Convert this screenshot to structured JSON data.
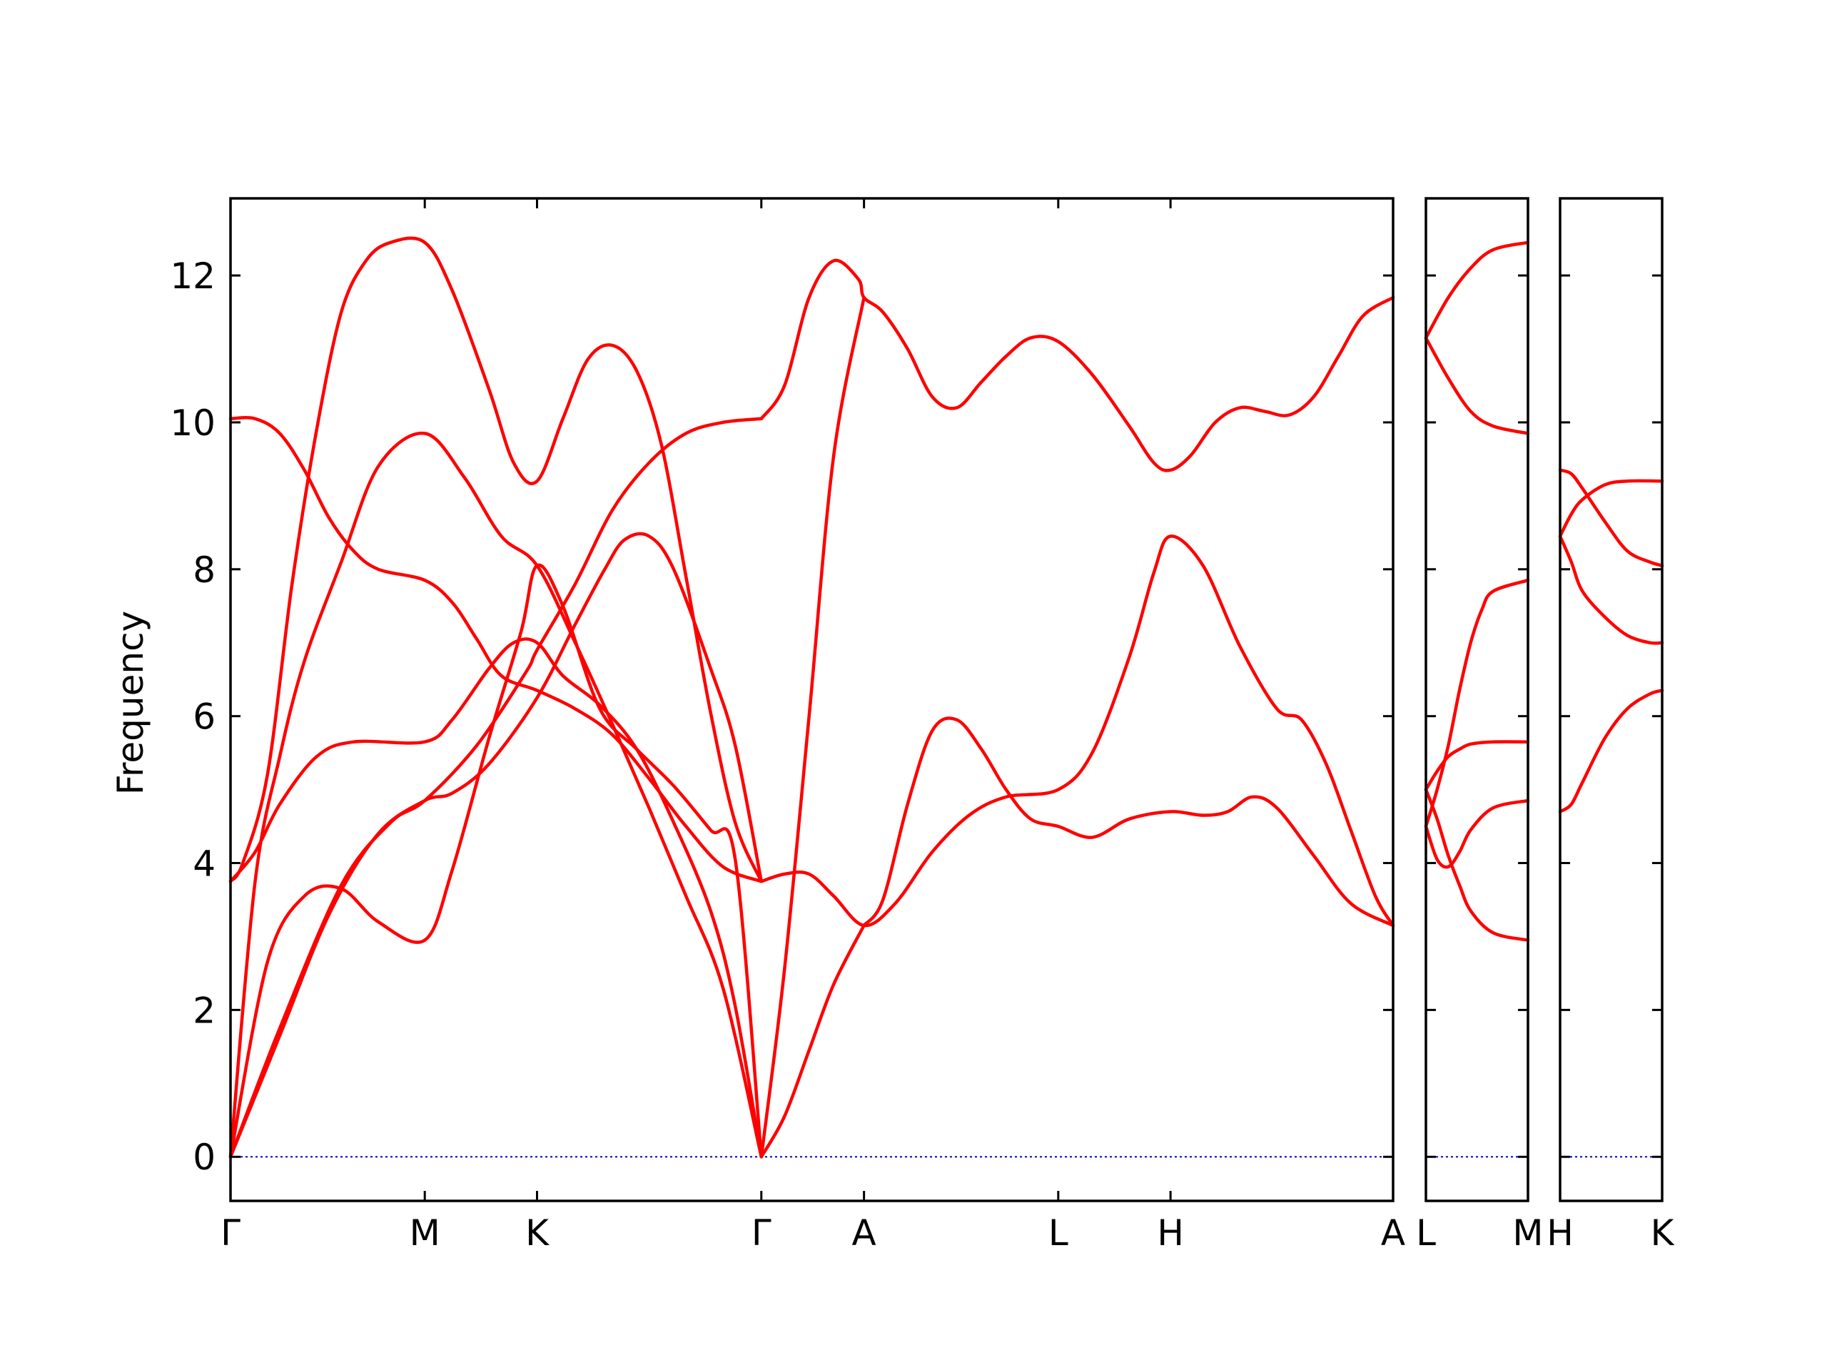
{
  "chart_data": {
    "type": "line",
    "title": "",
    "ylabel": "Frequency",
    "ylim": [
      -0.6,
      13.05
    ],
    "yticks": [
      0,
      2,
      4,
      6,
      8,
      10,
      12
    ],
    "zero_line_color": "#0000cc",
    "band_color": "#ff0000",
    "panels": [
      {
        "x_range": [
          0,
          4.722
        ],
        "ticks": [
          {
            "x": 0,
            "label": "Γ"
          },
          {
            "x": 0.789,
            "label": "M"
          },
          {
            "x": 1.245,
            "label": "K"
          },
          {
            "x": 2.156,
            "label": "Γ"
          },
          {
            "x": 2.573,
            "label": "A"
          },
          {
            "x": 3.362,
            "label": "L"
          },
          {
            "x": 3.818,
            "label": "H"
          },
          {
            "x": 4.722,
            "label": "A"
          }
        ],
        "bands": [
          [
            [
              0,
              0
            ],
            [
              0.2,
              1.75
            ],
            [
              0.45,
              3.7
            ],
            [
              0.65,
              4.55
            ],
            [
              0.789,
              4.85
            ],
            [
              1.0,
              5.6
            ],
            [
              1.2,
              6.6
            ],
            [
              1.245,
              6.9
            ],
            [
              1.4,
              7.8
            ],
            [
              1.55,
              8.8
            ],
            [
              1.7,
              9.45
            ],
            [
              1.85,
              9.85
            ],
            [
              2.0,
              10.0
            ],
            [
              2.156,
              10.05
            ]
          ],
          [
            [
              0,
              0
            ],
            [
              0.15,
              2.65
            ],
            [
              0.3,
              3.55
            ],
            [
              0.45,
              3.65
            ],
            [
              0.6,
              3.2
            ],
            [
              0.789,
              2.95
            ],
            [
              0.9,
              3.9
            ],
            [
              1.05,
              5.7
            ],
            [
              1.18,
              7.15
            ],
            [
              1.245,
              8.05
            ],
            [
              1.35,
              7.5
            ],
            [
              1.5,
              6.1
            ],
            [
              1.65,
              5.55
            ],
            [
              1.8,
              5.05
            ],
            [
              1.95,
              4.45
            ],
            [
              2.05,
              4.05
            ],
            [
              2.156,
              0
            ]
          ],
          [
            [
              0,
              0
            ],
            [
              0.2,
              1.65
            ],
            [
              0.4,
              3.3
            ],
            [
              0.6,
              4.4
            ],
            [
              0.789,
              4.85
            ],
            [
              0.9,
              4.95
            ],
            [
              1.05,
              5.35
            ],
            [
              1.245,
              6.25
            ],
            [
              1.4,
              7.25
            ],
            [
              1.52,
              8.0
            ],
            [
              1.6,
              8.4
            ],
            [
              1.7,
              8.45
            ],
            [
              1.8,
              8.0
            ],
            [
              1.95,
              6.65
            ],
            [
              2.05,
              5.6
            ],
            [
              2.156,
              3.75
            ]
          ],
          [
            [
              0,
              0
            ],
            [
              0.1,
              3.75
            ],
            [
              0.2,
              5.45
            ],
            [
              0.3,
              6.75
            ],
            [
              0.45,
              8.1
            ],
            [
              0.6,
              9.4
            ],
            [
              0.789,
              9.85
            ],
            [
              0.95,
              9.25
            ],
            [
              1.1,
              8.45
            ],
            [
              1.245,
              8.05
            ],
            [
              1.4,
              7.0
            ],
            [
              1.55,
              5.9
            ],
            [
              1.7,
              4.75
            ],
            [
              1.85,
              3.55
            ],
            [
              2.0,
              2.3
            ],
            [
              2.156,
              0
            ]
          ],
          [
            [
              0,
              3.75
            ],
            [
              0.1,
              4.15
            ],
            [
              0.2,
              4.8
            ],
            [
              0.35,
              5.45
            ],
            [
              0.5,
              5.65
            ],
            [
              0.789,
              5.65
            ],
            [
              0.9,
              5.95
            ],
            [
              1.05,
              6.65
            ],
            [
              1.15,
              7.0
            ],
            [
              1.245,
              7.0
            ],
            [
              1.35,
              6.55
            ],
            [
              1.5,
              6.15
            ],
            [
              1.65,
              5.55
            ],
            [
              1.8,
              4.55
            ],
            [
              1.95,
              3.35
            ],
            [
              2.05,
              2.05
            ],
            [
              2.156,
              0
            ]
          ],
          [
            [
              0,
              3.75
            ],
            [
              0.05,
              4.0
            ],
            [
              0.15,
              5.2
            ],
            [
              0.25,
              7.8
            ],
            [
              0.35,
              9.9
            ],
            [
              0.45,
              11.5
            ],
            [
              0.55,
              12.2
            ],
            [
              0.65,
              12.45
            ],
            [
              0.789,
              12.45
            ],
            [
              0.9,
              11.8
            ],
            [
              1.05,
              10.45
            ],
            [
              1.15,
              9.45
            ],
            [
              1.245,
              9.2
            ],
            [
              1.35,
              10.05
            ],
            [
              1.45,
              10.85
            ],
            [
              1.55,
              11.05
            ],
            [
              1.65,
              10.7
            ],
            [
              1.75,
              9.7
            ],
            [
              1.85,
              7.9
            ],
            [
              1.95,
              6.05
            ],
            [
              2.05,
              4.55
            ],
            [
              2.156,
              3.75
            ]
          ],
          [
            [
              0,
              10.05
            ],
            [
              0.1,
              10.05
            ],
            [
              0.2,
              9.85
            ],
            [
              0.3,
              9.35
            ],
            [
              0.4,
              8.7
            ],
            [
              0.5,
              8.25
            ],
            [
              0.6,
              8.0
            ],
            [
              0.789,
              7.85
            ],
            [
              0.9,
              7.55
            ],
            [
              1.0,
              7.05
            ],
            [
              1.1,
              6.55
            ],
            [
              1.245,
              6.35
            ],
            [
              1.4,
              6.1
            ],
            [
              1.55,
              5.75
            ],
            [
              1.7,
              5.15
            ],
            [
              1.85,
              4.5
            ],
            [
              2.0,
              3.95
            ],
            [
              2.156,
              3.75
            ]
          ],
          [
            [
              2.156,
              0
            ],
            [
              2.25,
              0.55
            ],
            [
              2.35,
              1.45
            ],
            [
              2.45,
              2.35
            ],
            [
              2.573,
              3.15
            ]
          ],
          [
            [
              2.156,
              3.75
            ],
            [
              2.25,
              3.85
            ],
            [
              2.35,
              3.85
            ],
            [
              2.45,
              3.55
            ],
            [
              2.573,
              3.15
            ],
            [
              2.7,
              3.45
            ],
            [
              2.85,
              4.15
            ],
            [
              3.0,
              4.65
            ],
            [
              3.15,
              4.9
            ],
            [
              3.362,
              5.0
            ],
            [
              3.5,
              5.5
            ],
            [
              3.65,
              6.8
            ],
            [
              3.75,
              7.95
            ],
            [
              3.818,
              8.45
            ],
            [
              3.95,
              8.05
            ],
            [
              4.1,
              6.95
            ],
            [
              4.25,
              6.1
            ],
            [
              4.35,
              5.95
            ],
            [
              4.45,
              5.35
            ],
            [
              4.55,
              4.45
            ],
            [
              4.65,
              3.55
            ],
            [
              4.722,
              3.15
            ]
          ],
          [
            [
              2.573,
              3.15
            ],
            [
              2.65,
              3.5
            ],
            [
              2.75,
              4.8
            ],
            [
              2.85,
              5.8
            ],
            [
              2.95,
              5.95
            ],
            [
              3.05,
              5.55
            ],
            [
              3.15,
              5.0
            ],
            [
              3.25,
              4.6
            ],
            [
              3.362,
              4.5
            ],
            [
              3.5,
              4.35
            ],
            [
              3.65,
              4.6
            ],
            [
              3.818,
              4.7
            ],
            [
              3.95,
              4.65
            ],
            [
              4.05,
              4.7
            ],
            [
              4.15,
              4.9
            ],
            [
              4.25,
              4.75
            ],
            [
              4.4,
              4.1
            ],
            [
              4.55,
              3.45
            ],
            [
              4.722,
              3.15
            ]
          ],
          [
            [
              2.156,
              0
            ],
            [
              2.25,
              2.55
            ],
            [
              2.35,
              6.0
            ],
            [
              2.45,
              9.55
            ],
            [
              2.573,
              11.7
            ]
          ],
          [
            [
              2.156,
              10.05
            ],
            [
              2.25,
              10.5
            ],
            [
              2.35,
              11.7
            ],
            [
              2.45,
              12.2
            ],
            [
              2.55,
              11.95
            ],
            [
              2.573,
              11.7
            ],
            [
              2.65,
              11.5
            ],
            [
              2.75,
              11.0
            ],
            [
              2.85,
              10.35
            ],
            [
              2.95,
              10.2
            ],
            [
              3.05,
              10.55
            ],
            [
              3.15,
              10.9
            ],
            [
              3.25,
              11.15
            ],
            [
              3.362,
              11.1
            ],
            [
              3.5,
              10.65
            ],
            [
              3.65,
              9.95
            ],
            [
              3.75,
              9.45
            ],
            [
              3.818,
              9.35
            ],
            [
              3.9,
              9.55
            ],
            [
              4.0,
              10.0
            ],
            [
              4.1,
              10.2
            ],
            [
              4.2,
              10.15
            ],
            [
              4.3,
              10.1
            ],
            [
              4.4,
              10.35
            ],
            [
              4.5,
              10.9
            ],
            [
              4.6,
              11.45
            ],
            [
              4.722,
              11.7
            ]
          ]
        ]
      },
      {
        "x_range": [
          0,
          0.456
        ],
        "ticks": [
          {
            "x": 0,
            "label": "L"
          },
          {
            "x": 0.456,
            "label": "M"
          }
        ],
        "bands": [
          [
            [
              0,
              11.15
            ],
            [
              0.1,
              11.7
            ],
            [
              0.2,
              12.1
            ],
            [
              0.3,
              12.35
            ],
            [
              0.456,
              12.45
            ]
          ],
          [
            [
              0,
              11.15
            ],
            [
              0.1,
              10.6
            ],
            [
              0.2,
              10.15
            ],
            [
              0.3,
              9.95
            ],
            [
              0.456,
              9.85
            ]
          ],
          [
            [
              0,
              4.5
            ],
            [
              0.05,
              5.0
            ],
            [
              0.1,
              5.6
            ],
            [
              0.15,
              6.35
            ],
            [
              0.2,
              7.0
            ],
            [
              0.25,
              7.45
            ],
            [
              0.3,
              7.7
            ],
            [
              0.456,
              7.85
            ]
          ],
          [
            [
              0,
              5.0
            ],
            [
              0.05,
              5.25
            ],
            [
              0.1,
              5.45
            ],
            [
              0.15,
              5.55
            ],
            [
              0.2,
              5.62
            ],
            [
              0.3,
              5.65
            ],
            [
              0.456,
              5.65
            ]
          ],
          [
            [
              0,
              4.5
            ],
            [
              0.05,
              4.05
            ],
            [
              0.1,
              3.95
            ],
            [
              0.15,
              4.15
            ],
            [
              0.2,
              4.45
            ],
            [
              0.3,
              4.75
            ],
            [
              0.456,
              4.85
            ]
          ],
          [
            [
              0,
              5.0
            ],
            [
              0.05,
              4.6
            ],
            [
              0.1,
              4.1
            ],
            [
              0.15,
              3.7
            ],
            [
              0.2,
              3.35
            ],
            [
              0.3,
              3.05
            ],
            [
              0.456,
              2.95
            ]
          ]
        ]
      },
      {
        "x_range": [
          0,
          0.456
        ],
        "ticks": [
          {
            "x": 0,
            "label": "H"
          },
          {
            "x": 0.456,
            "label": "K"
          }
        ],
        "bands": [
          [
            [
              0,
              9.35
            ],
            [
              0.05,
              9.3
            ],
            [
              0.1,
              9.1
            ],
            [
              0.2,
              8.65
            ],
            [
              0.3,
              8.25
            ],
            [
              0.4,
              8.1
            ],
            [
              0.456,
              8.05
            ]
          ],
          [
            [
              0,
              8.45
            ],
            [
              0.05,
              8.75
            ],
            [
              0.1,
              8.95
            ],
            [
              0.2,
              9.15
            ],
            [
              0.3,
              9.2
            ],
            [
              0.456,
              9.2
            ]
          ],
          [
            [
              0,
              8.45
            ],
            [
              0.05,
              8.1
            ],
            [
              0.1,
              7.7
            ],
            [
              0.2,
              7.35
            ],
            [
              0.3,
              7.1
            ],
            [
              0.4,
              7.0
            ],
            [
              0.456,
              7.0
            ]
          ],
          [
            [
              0,
              4.7
            ],
            [
              0.05,
              4.8
            ],
            [
              0.1,
              5.1
            ],
            [
              0.2,
              5.7
            ],
            [
              0.3,
              6.1
            ],
            [
              0.4,
              6.3
            ],
            [
              0.456,
              6.35
            ]
          ]
        ]
      }
    ]
  }
}
